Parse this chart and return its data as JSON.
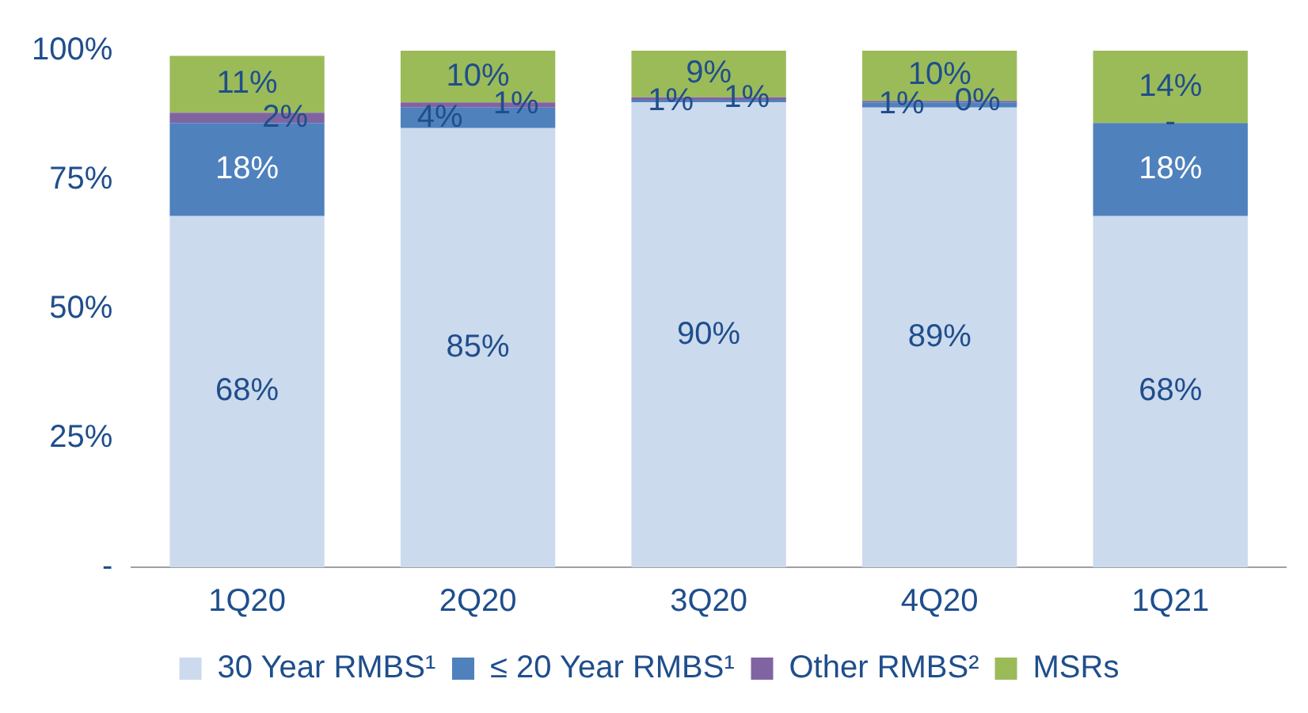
{
  "chart_data": {
    "type": "bar",
    "stacked": true,
    "categories": [
      "1Q20",
      "2Q20",
      "3Q20",
      "4Q20",
      "1Q21"
    ],
    "series": [
      {
        "name": "30 Year RMBS¹",
        "color": "#ccdaed",
        "values": [
          68,
          85,
          90,
          89,
          68
        ],
        "value_labels": [
          "68%",
          "85%",
          "90%",
          "89%",
          "68%"
        ]
      },
      {
        "name": "≤ 20 Year RMBS¹",
        "color": "#4f81bd",
        "values": [
          18,
          4,
          0.5,
          1,
          18
        ],
        "value_labels": [
          "18%",
          "4%",
          "1%",
          "1%",
          "18%"
        ]
      },
      {
        "name": "Other RMBS²",
        "color": "#8064a2",
        "values": [
          2,
          1,
          0.5,
          0.3,
          0
        ],
        "value_labels": [
          "2%",
          "1%",
          "1%",
          "0%",
          "-"
        ]
      },
      {
        "name": "MSRs",
        "color": "#9bbb59",
        "values": [
          11,
          10,
          9,
          10,
          14
        ],
        "value_labels": [
          "11%",
          "10%",
          "9%",
          "10%",
          "14%"
        ]
      }
    ],
    "ylim": [
      0,
      100
    ],
    "yticks": [
      {
        "value": 0,
        "label": "-"
      },
      {
        "value": 25,
        "label": "25%"
      },
      {
        "value": 50,
        "label": "50%"
      },
      {
        "value": 75,
        "label": "75%"
      },
      {
        "value": 100,
        "label": "100%"
      }
    ],
    "grid": false,
    "legend": "bottom"
  }
}
